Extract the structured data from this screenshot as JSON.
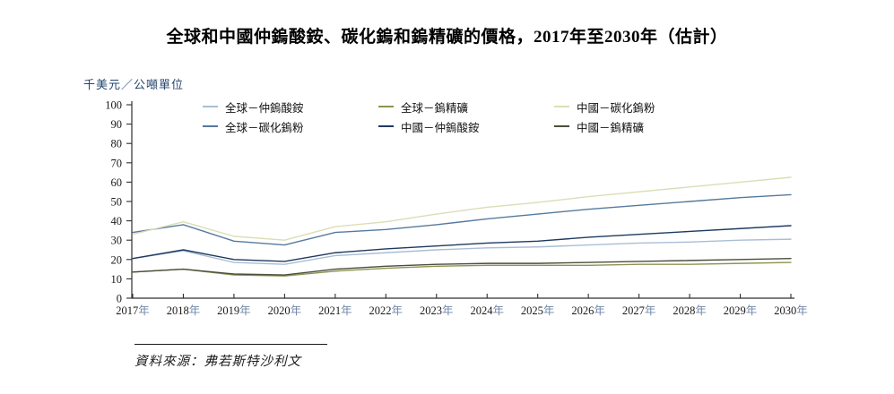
{
  "title": "全球和中國仲鎢酸銨、碳化鎢和鎢精礦的價格，2017年至2030年（估計）",
  "unit_label": "千美元／公噸單位",
  "source": {
    "label": "資料來源：弗若斯特沙利文"
  },
  "chart_data": {
    "type": "line",
    "x": [
      2017,
      2018,
      2019,
      2020,
      2021,
      2022,
      2023,
      2024,
      2025,
      2026,
      2027,
      2028,
      2029,
      2030
    ],
    "x_suffix": "年",
    "ylim": [
      0,
      100
    ],
    "yticks": [
      0,
      10,
      20,
      30,
      40,
      50,
      60,
      70,
      80,
      90,
      100
    ],
    "grid": false,
    "legend_position": "top-center-two-rows",
    "series": [
      {
        "name": "全球－仲鎢酸銨",
        "color": "#aabdd6",
        "values": [
          20.5,
          24.5,
          18.5,
          17.5,
          22,
          23.5,
          25,
          26,
          26.5,
          27.5,
          28.5,
          29,
          30,
          30.5
        ]
      },
      {
        "name": "全球－碳化鎢粉",
        "color": "#557a9e",
        "values": [
          34,
          38,
          29.5,
          27.5,
          34,
          35.5,
          38,
          41,
          43.5,
          46,
          48,
          50,
          52,
          53.5
        ]
      },
      {
        "name": "全球－鎢精礦",
        "color": "#8f9252",
        "values": [
          13.5,
          15,
          12,
          11.5,
          14,
          15.5,
          16.5,
          17,
          17,
          17,
          17.5,
          17.5,
          18,
          18.5
        ]
      },
      {
        "name": "中國－仲鎢酸銨",
        "color": "#1f3a5f",
        "values": [
          20.5,
          25,
          20,
          19,
          23.5,
          25.5,
          27,
          28.5,
          29.5,
          31.5,
          33,
          34.5,
          36,
          37.5
        ]
      },
      {
        "name": "中國－碳化鎢粉",
        "color": "#dcddb6",
        "values": [
          33,
          39.5,
          32,
          30,
          37,
          39.5,
          43.5,
          47,
          49.5,
          52.5,
          55,
          57.5,
          60,
          62.5
        ]
      },
      {
        "name": "中國－鎢精礦",
        "color": "#4b4e3b",
        "values": [
          13.5,
          15,
          12.5,
          12,
          15,
          16.5,
          17.5,
          18,
          18,
          18.5,
          19,
          19.5,
          20,
          20.5
        ]
      }
    ]
  }
}
